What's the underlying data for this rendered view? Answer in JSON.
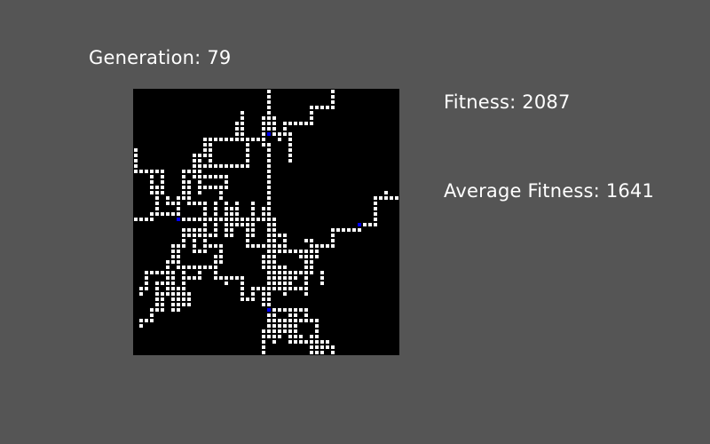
{
  "generation": {
    "label": "Generation:",
    "value": "79"
  },
  "stats": {
    "fitness_label": "Fitness:",
    "fitness_value": "2087",
    "avg_fitness_label": "Average Fitness:",
    "avg_fitness_value": "1641"
  },
  "colors": {
    "background": "#555555",
    "grid_background": "#000000",
    "cell": "#ffffff",
    "seed": "#0000ff",
    "text": "#ffffff"
  },
  "grid": {
    "cols": 50,
    "rows": 50,
    "seeds": [
      [
        8,
        24
      ],
      [
        25,
        41
      ],
      [
        42,
        25
      ],
      [
        25,
        8
      ]
    ],
    "branches": [
      [
        [
          25,
          25
        ],
        [
          25,
          10
        ],
        [
          24,
          10
        ],
        [
          24,
          5
        ],
        [
          26,
          5
        ],
        [
          26,
          8
        ],
        [
          28,
          8
        ],
        [
          28,
          6
        ],
        [
          33,
          6
        ],
        [
          33,
          3
        ],
        [
          37,
          3
        ],
        [
          37,
          0
        ]
      ],
      [
        [
          25,
          8
        ],
        [
          25,
          0
        ]
      ],
      [
        [
          25,
          8
        ],
        [
          29,
          8
        ],
        [
          29,
          13
        ]
      ],
      [
        [
          25,
          8
        ],
        [
          27,
          8
        ],
        [
          27,
          9
        ]
      ],
      [
        [
          24,
          9
        ],
        [
          20,
          9
        ],
        [
          20,
          4
        ]
      ],
      [
        [
          19,
          9
        ],
        [
          19,
          6
        ]
      ],
      [
        [
          21,
          9
        ],
        [
          21,
          14
        ],
        [
          16,
          14
        ]
      ],
      [
        [
          20,
          9
        ],
        [
          13,
          9
        ],
        [
          13,
          12
        ],
        [
          11,
          12
        ],
        [
          11,
          16
        ],
        [
          17,
          16
        ],
        [
          17,
          18
        ]
      ],
      [
        [
          14,
          9
        ],
        [
          14,
          13
        ]
      ],
      [
        [
          12,
          13
        ],
        [
          12,
          19
        ]
      ],
      [
        [
          11,
          14
        ],
        [
          15,
          14
        ]
      ],
      [
        [
          12,
          18
        ],
        [
          16,
          18
        ],
        [
          16,
          20
        ]
      ],
      [
        [
          11,
          15
        ],
        [
          9,
          15
        ],
        [
          9,
          20
        ],
        [
          8,
          20
        ],
        [
          8,
          24
        ]
      ],
      [
        [
          12,
          21
        ],
        [
          10,
          21
        ],
        [
          10,
          17
        ]
      ],
      [
        [
          8,
          23
        ],
        [
          4,
          23
        ],
        [
          4,
          18
        ],
        [
          5,
          18
        ],
        [
          5,
          15
        ],
        [
          0,
          15
        ],
        [
          0,
          11
        ]
      ],
      [
        [
          5,
          15
        ],
        [
          5,
          19
        ],
        [
          3,
          19
        ],
        [
          3,
          16
        ]
      ],
      [
        [
          8,
          21
        ],
        [
          6,
          21
        ],
        [
          6,
          20
        ]
      ],
      [
        [
          5,
          23
        ],
        [
          3,
          23
        ],
        [
          3,
          24
        ],
        [
          0,
          24
        ]
      ],
      [
        [
          8,
          24
        ],
        [
          25,
          24
        ],
        [
          25,
          41
        ]
      ],
      [
        [
          13,
          21
        ],
        [
          13,
          29
        ],
        [
          16,
          29
        ],
        [
          16,
          32
        ]
      ],
      [
        [
          15,
          21
        ],
        [
          15,
          27
        ]
      ],
      [
        [
          17,
          21
        ],
        [
          17,
          27
        ],
        [
          18,
          27
        ],
        [
          18,
          22
        ]
      ],
      [
        [
          19,
          21
        ],
        [
          19,
          25
        ],
        [
          21,
          25
        ],
        [
          21,
          29
        ],
        [
          25,
          29
        ]
      ],
      [
        [
          22,
          21
        ],
        [
          22,
          27
        ]
      ],
      [
        [
          9,
          26
        ],
        [
          12,
          26
        ]
      ],
      [
        [
          9,
          27
        ],
        [
          9,
          29
        ],
        [
          7,
          29
        ],
        [
          7,
          32
        ]
      ],
      [
        [
          10,
          27
        ],
        [
          15,
          27
        ]
      ],
      [
        [
          11,
          27
        ],
        [
          11,
          30
        ],
        [
          13,
          30
        ],
        [
          13,
          28
        ]
      ],
      [
        [
          8,
          30
        ],
        [
          8,
          33
        ],
        [
          15,
          33
        ],
        [
          15,
          31
        ]
      ],
      [
        [
          6,
          32
        ],
        [
          6,
          38
        ],
        [
          5,
          38
        ],
        [
          5,
          41
        ],
        [
          3,
          41
        ],
        [
          3,
          43
        ],
        [
          1,
          43
        ],
        [
          1,
          44
        ]
      ],
      [
        [
          6,
          34
        ],
        [
          2,
          34
        ],
        [
          2,
          37
        ],
        [
          1,
          37
        ],
        [
          1,
          38
        ]
      ],
      [
        [
          6,
          36
        ],
        [
          4,
          36
        ],
        [
          4,
          41
        ]
      ],
      [
        [
          7,
          34
        ],
        [
          7,
          41
        ],
        [
          8,
          41
        ],
        [
          8,
          37
        ]
      ],
      [
        [
          9,
          34
        ],
        [
          9,
          40
        ],
        [
          10,
          40
        ],
        [
          10,
          38
        ]
      ],
      [
        [
          10,
          35
        ],
        [
          12,
          35
        ],
        [
          12,
          34
        ]
      ],
      [
        [
          15,
          33
        ],
        [
          15,
          35
        ],
        [
          20,
          35
        ],
        [
          20,
          39
        ],
        [
          22,
          39
        ],
        [
          22,
          37
        ],
        [
          24,
          37
        ],
        [
          24,
          40
        ],
        [
          25,
          40
        ]
      ],
      [
        [
          17,
          35
        ],
        [
          17,
          36
        ]
      ],
      [
        [
          25,
          27
        ],
        [
          28,
          27
        ],
        [
          28,
          29
        ],
        [
          26,
          29
        ],
        [
          26,
          31
        ],
        [
          24,
          31
        ],
        [
          24,
          33
        ],
        [
          28,
          33
        ],
        [
          28,
          35
        ],
        [
          27,
          35
        ],
        [
          27,
          37
        ],
        [
          26,
          37
        ]
      ],
      [
        [
          25,
          30
        ],
        [
          33,
          30
        ],
        [
          33,
          28
        ],
        [
          32,
          28
        ]
      ],
      [
        [
          27,
          29
        ],
        [
          26,
          29
        ],
        [
          26,
          24
        ],
        [
          24,
          24
        ],
        [
          24,
          22
        ]
      ],
      [
        [
          25,
          41
        ],
        [
          25,
          46
        ],
        [
          24,
          46
        ],
        [
          24,
          49
        ]
      ],
      [
        [
          25,
          41
        ],
        [
          26,
          41
        ],
        [
          26,
          43
        ],
        [
          29,
          43
        ],
        [
          29,
          47
        ],
        [
          33,
          47
        ],
        [
          33,
          48
        ],
        [
          34,
          48
        ]
      ],
      [
        [
          26,
          44
        ],
        [
          27,
          44
        ],
        [
          27,
          46
        ]
      ],
      [
        [
          26,
          45
        ],
        [
          26,
          47
        ]
      ],
      [
        [
          29,
          42
        ],
        [
          30,
          42
        ],
        [
          30,
          45
        ]
      ],
      [
        [
          30,
          46
        ],
        [
          31,
          46
        ],
        [
          31,
          47
        ]
      ],
      [
        [
          33,
          47
        ],
        [
          33,
          46
        ]
      ],
      [
        [
          34,
          48
        ],
        [
          37,
          48
        ],
        [
          37,
          50
        ]
      ],
      [
        [
          34,
          47
        ],
        [
          36,
          47
        ]
      ],
      [
        [
          33,
          49
        ],
        [
          35,
          49
        ]
      ],
      [
        [
          25,
          31
        ],
        [
          26,
          31
        ],
        [
          26,
          36
        ]
      ],
      [
        [
          26,
          34
        ],
        [
          33,
          34
        ],
        [
          33,
          31
        ],
        [
          34,
          31
        ],
        [
          34,
          29
        ],
        [
          37,
          29
        ],
        [
          37,
          26
        ],
        [
          42,
          26
        ],
        [
          42,
          25
        ]
      ],
      [
        [
          33,
          34
        ],
        [
          33,
          30
        ]
      ],
      [
        [
          32,
          34
        ],
        [
          32,
          31
        ],
        [
          31,
          31
        ],
        [
          31,
          30
        ]
      ],
      [
        [
          30,
          34
        ],
        [
          30,
          35
        ],
        [
          29,
          35
        ],
        [
          29,
          36
        ]
      ],
      [
        [
          28,
          36
        ],
        [
          28,
          38
        ]
      ],
      [
        [
          29,
          37
        ],
        [
          32,
          37
        ],
        [
          32,
          38
        ]
      ],
      [
        [
          32,
          35
        ],
        [
          32,
          36
        ]
      ],
      [
        [
          35,
          34
        ],
        [
          35,
          36
        ]
      ],
      [
        [
          42,
          25
        ],
        [
          45,
          25
        ],
        [
          45,
          20
        ],
        [
          47,
          20
        ],
        [
          47,
          19
        ]
      ],
      [
        [
          46,
          20
        ],
        [
          49,
          20
        ]
      ],
      [
        [
          35,
          48
        ],
        [
          35,
          50
        ]
      ],
      [
        [
          25,
          41
        ],
        [
          31,
          41
        ]
      ],
      [
        [
          32,
          41
        ],
        [
          32,
          43
        ]
      ],
      [
        [
          31,
          43
        ],
        [
          34,
          43
        ],
        [
          34,
          47
        ]
      ],
      [
        [
          28,
          44
        ],
        [
          28,
          45
        ]
      ],
      [
        [
          26,
          46
        ],
        [
          27,
          46
        ]
      ],
      [
        [
          24,
          45
        ],
        [
          24,
          46
        ]
      ]
    ]
  }
}
